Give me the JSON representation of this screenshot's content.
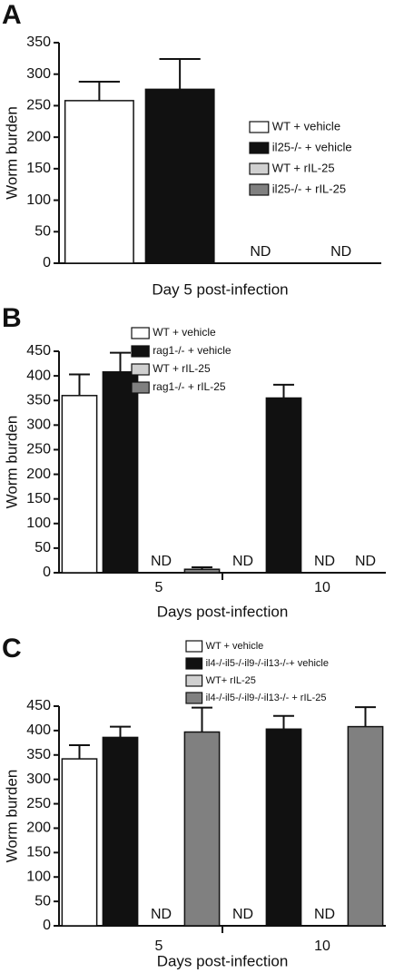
{
  "chart_data": [
    {
      "type": "bar",
      "label": "A",
      "ylabel": "Worm burden",
      "xlabel": "Day 5 post-infection",
      "categories": [
        null
      ],
      "ylim": [
        0,
        350
      ],
      "yticks": [
        0,
        50,
        100,
        150,
        200,
        250,
        300,
        350
      ],
      "legend": "right",
      "series": [
        {
          "name": "WT + vehicle",
          "color": "#ffffff",
          "values": [
            258
          ],
          "errors": [
            30
          ]
        },
        {
          "name": "il25-/- + vehicle",
          "color": "#111111",
          "values": [
            276
          ],
          "errors": [
            48
          ]
        },
        {
          "name": "WT + rIL-25",
          "color": "#d0d0d0",
          "values": [
            null
          ],
          "errors": [
            null
          ],
          "value_labels": [
            "ND"
          ]
        },
        {
          "name": "il25-/- + rIL-25",
          "color": "#808080",
          "values": [
            null
          ],
          "errors": [
            null
          ],
          "value_labels": [
            "ND"
          ]
        }
      ]
    },
    {
      "type": "bar",
      "label": "B",
      "ylabel": "Worm burden",
      "xlabel": "Days post-infection",
      "categories": [
        "5",
        "10"
      ],
      "ylim": [
        0,
        450
      ],
      "yticks": [
        0,
        50,
        100,
        150,
        200,
        250,
        300,
        350,
        400,
        450
      ],
      "legend": "top",
      "series": [
        {
          "name": "WT + vehicle",
          "color": "#ffffff",
          "values": [
            360,
            null
          ],
          "errors": [
            43,
            null
          ],
          "value_labels": [
            null,
            "ND"
          ]
        },
        {
          "name": "rag1-/- + vehicle",
          "color": "#111111",
          "values": [
            408,
            355
          ],
          "errors": [
            39,
            27
          ]
        },
        {
          "name": "WT + rIL-25",
          "color": "#d0d0d0",
          "values": [
            null,
            null
          ],
          "errors": [
            null,
            null
          ],
          "value_labels": [
            "ND",
            "ND"
          ]
        },
        {
          "name": "rag1-/- + rIL-25",
          "color": "#808080",
          "values": [
            7,
            null
          ],
          "errors": [
            4,
            null
          ],
          "value_labels": [
            null,
            "ND"
          ]
        }
      ]
    },
    {
      "type": "bar",
      "label": "C",
      "ylabel": "Worm burden",
      "xlabel": "Days post-infection",
      "categories": [
        "5",
        "10"
      ],
      "ylim": [
        0,
        450
      ],
      "yticks": [
        0,
        50,
        100,
        150,
        200,
        250,
        300,
        350,
        400,
        450
      ],
      "legend": "top",
      "series": [
        {
          "name": "WT + vehicle",
          "color": "#ffffff",
          "values": [
            342,
            null
          ],
          "errors": [
            28,
            null
          ],
          "value_labels": [
            null,
            "ND"
          ]
        },
        {
          "name": "il4-/-il5-/-il9-/-il13-/-+ vehicle",
          "color": "#111111",
          "values": [
            386,
            403
          ],
          "errors": [
            22,
            27
          ]
        },
        {
          "name": "WT+ rIL-25",
          "color": "#d0d0d0",
          "values": [
            null,
            null
          ],
          "errors": [
            null,
            null
          ],
          "value_labels": [
            "ND",
            "ND"
          ]
        },
        {
          "name": "il4-/-il5-/-il9-/-il13-/- + rIL-25",
          "color": "#808080",
          "values": [
            397,
            408
          ],
          "errors": [
            50,
            40
          ]
        }
      ]
    }
  ]
}
